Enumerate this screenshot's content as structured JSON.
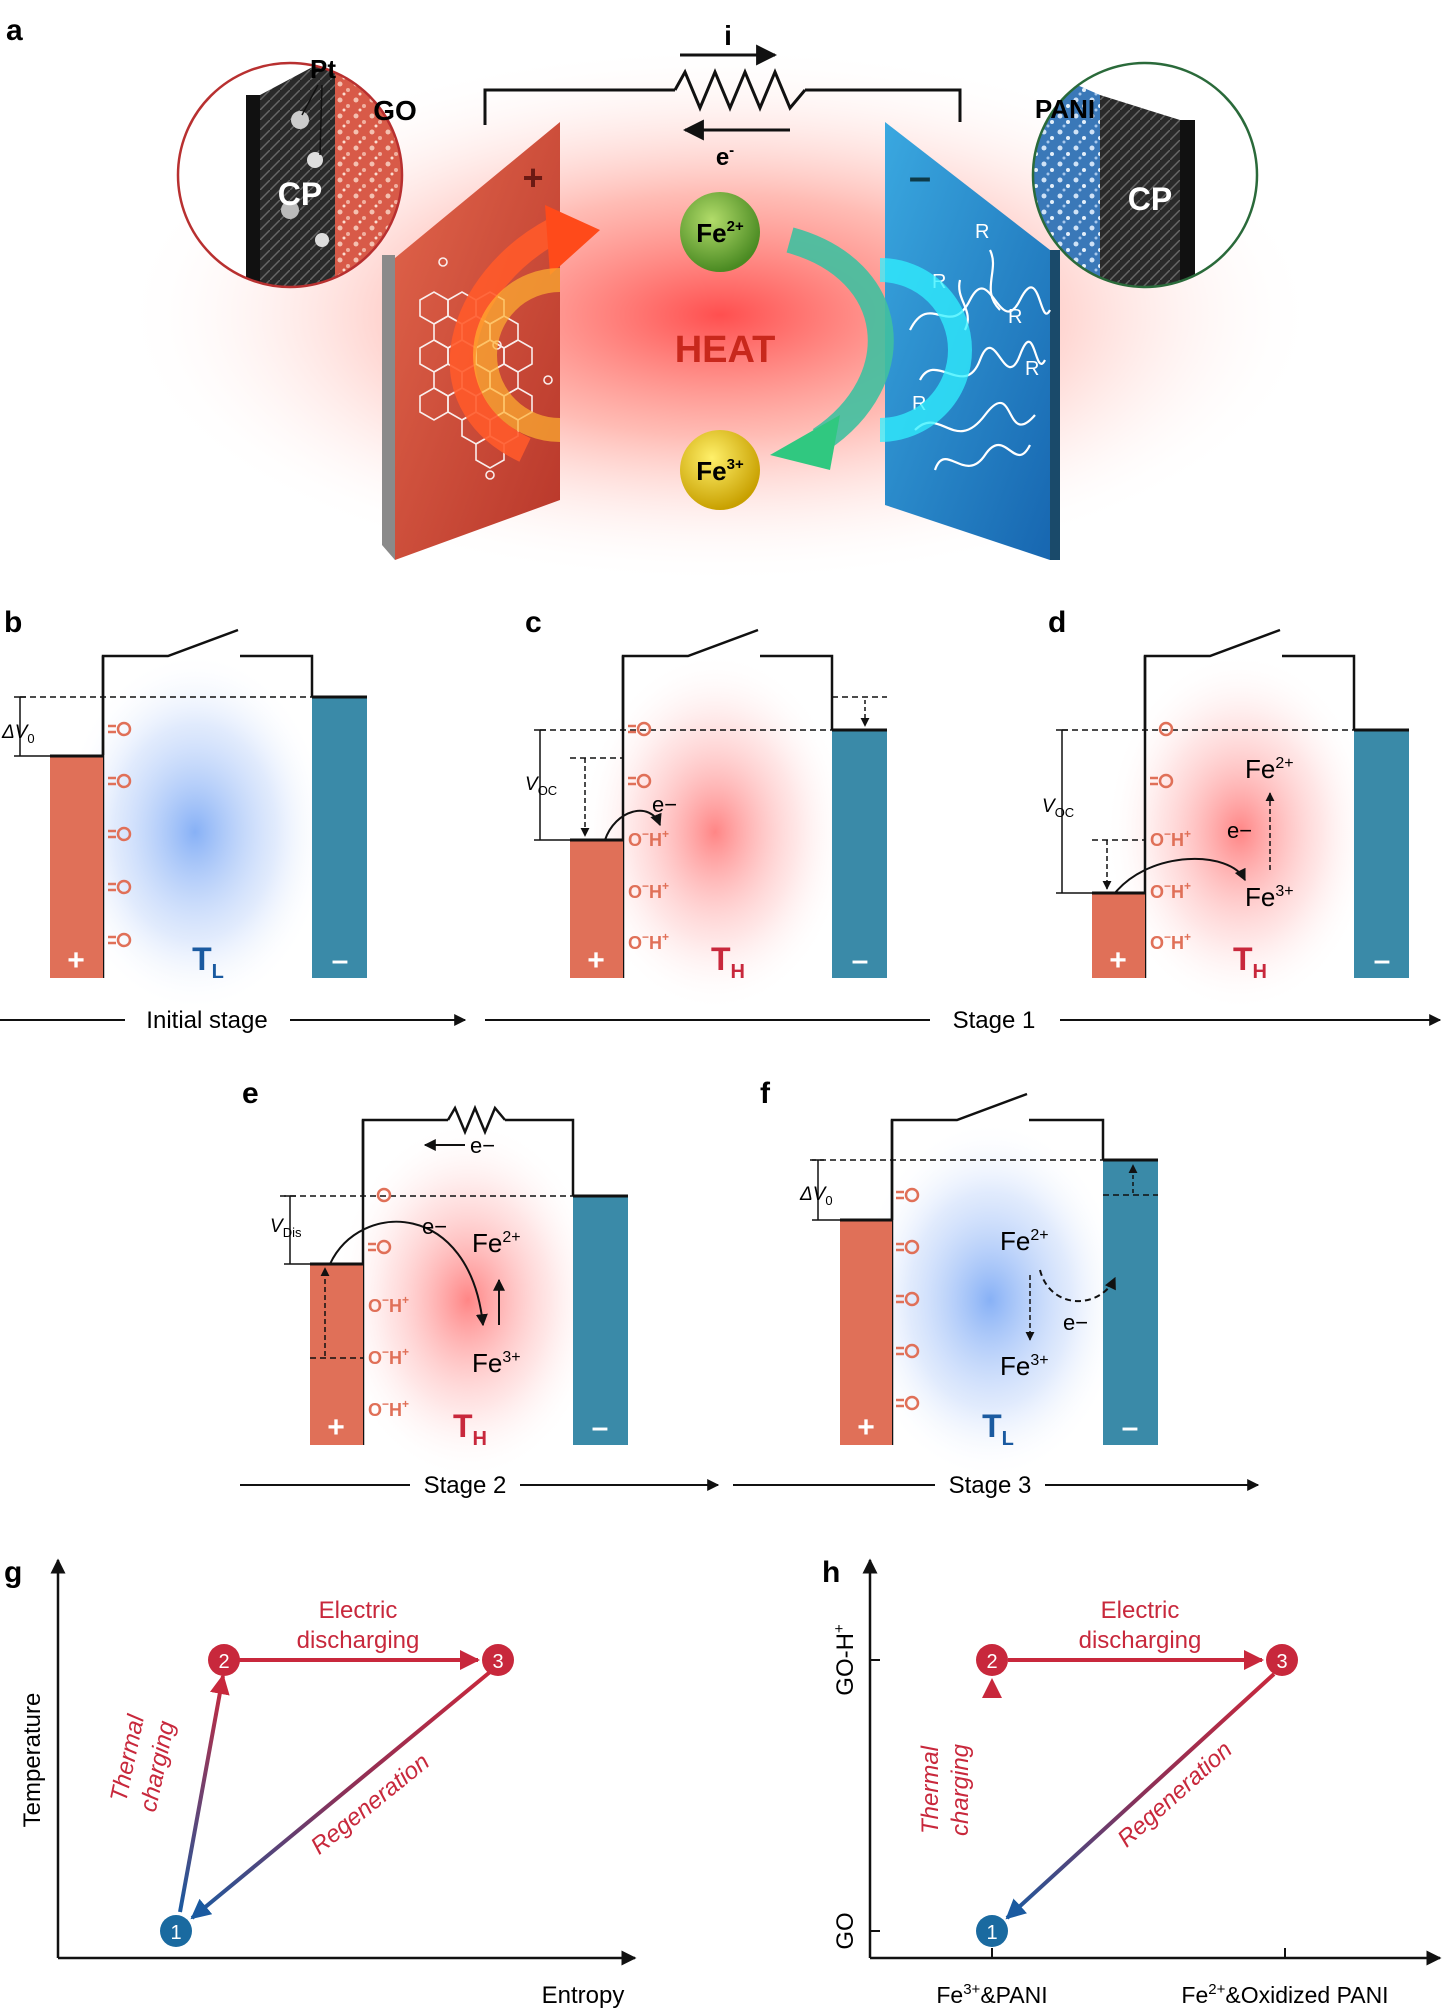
{
  "colors": {
    "pos_electrode": "#e07058",
    "neg_electrode": "#3a8aa8",
    "hot": "#c8283c",
    "cold": "#1a5aa0",
    "arrow_dark": "#111111"
  },
  "panel_a": {
    "letter": "a",
    "current_label": "i",
    "electron_label": "e",
    "electron_sup": "-",
    "left_inset": {
      "pt": "Pt",
      "go": "GO",
      "cp": "CP"
    },
    "right_inset": {
      "pani": "PANI",
      "cp": "CP"
    },
    "plus": "+",
    "minus": "–",
    "fe2": "Fe",
    "fe2_sup": "2+",
    "fe3": "Fe",
    "fe3_sup": "3+",
    "heat": "HEAT",
    "r_label": "R"
  },
  "panel_b": {
    "letter": "b",
    "delta_v": "ΔV",
    "delta_v_sub": "0",
    "temp": "T",
    "temp_sub": "L",
    "stage": "Initial stage",
    "plus": "+",
    "minus": "–"
  },
  "panel_c": {
    "letter": "c",
    "voc": "V",
    "voc_sub": "OC",
    "electron": "e−",
    "oh": "O",
    "oh_sup": "−",
    "h": "H",
    "h_sup": "+",
    "temp": "T",
    "temp_sub": "H",
    "plus": "+",
    "minus": "–"
  },
  "stage1": "Stage 1",
  "panel_d": {
    "letter": "d",
    "voc": "V",
    "voc_sub": "OC",
    "fe2": "Fe",
    "fe2_sup": "2+",
    "fe3": "Fe",
    "fe3_sup": "3+",
    "electron": "e−",
    "temp": "T",
    "temp_sub": "H",
    "plus": "+",
    "minus": "–"
  },
  "panel_e": {
    "letter": "e",
    "electron_wire": "e−",
    "vdis": "V",
    "vdis_sub": "Dis",
    "electron": "e−",
    "fe2": "Fe",
    "fe2_sup": "2+",
    "fe3": "Fe",
    "fe3_sup": "3+",
    "temp": "T",
    "temp_sub": "H",
    "stage": "Stage 2",
    "plus": "+",
    "minus": "–"
  },
  "panel_f": {
    "letter": "f",
    "delta_v": "ΔV",
    "delta_v_sub": "0",
    "fe2": "Fe",
    "fe2_sup": "2+",
    "fe3": "Fe",
    "fe3_sup": "3+",
    "electron": "e−",
    "temp": "T",
    "temp_sub": "L",
    "stage": "Stage 3",
    "plus": "+",
    "minus": "–"
  },
  "panel_g": {
    "letter": "g",
    "ylabel": "Temperature",
    "xlabel": "Entropy",
    "discharge_1": "Electric",
    "discharge_2": "discharging",
    "thermal_1": "Thermal",
    "thermal_2": "charging",
    "regeneration": "Regeneration",
    "n1": "1",
    "n2": "2",
    "n3": "3"
  },
  "panel_h": {
    "letter": "h",
    "y_top": "GO-H",
    "y_top_sup": "+",
    "y_bottom": "GO",
    "x_left_pre": "Fe",
    "x_left_sup": "3+",
    "x_left_post": "&PANI",
    "x_right_pre": "Fe",
    "x_right_sup": "2+",
    "x_right_post": "&Oxidized PANI",
    "discharge_1": "Electric",
    "discharge_2": "discharging",
    "thermal_1": "Thermal",
    "thermal_2": "charging",
    "regeneration": "Regeneration",
    "n1": "1",
    "n2": "2",
    "n3": "3"
  }
}
